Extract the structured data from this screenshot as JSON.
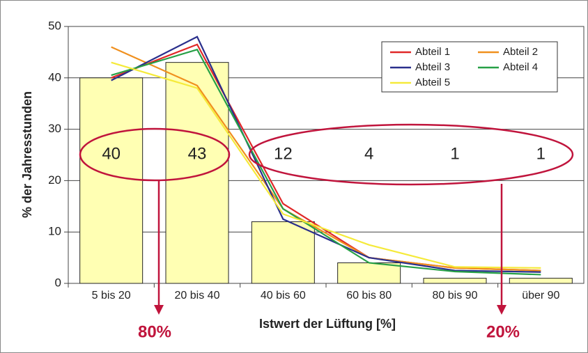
{
  "chart_data": {
    "type": "bar",
    "categories": [
      "5 bis 20",
      "20 bis 40",
      "40 bis 60",
      "60 bis 80",
      "80 bis 90",
      "über 90"
    ],
    "values": [
      40,
      43,
      12,
      4,
      1,
      1
    ],
    "color": "#ffffb3",
    "series": [
      {
        "name": "Abteil 1",
        "color": "#e02828",
        "values": [
          40,
          46.5,
          15.5,
          5,
          3,
          2.5
        ]
      },
      {
        "name": "Abteil 2",
        "color": "#f0901e",
        "values": [
          46,
          38.5,
          14.5,
          5,
          3,
          2.5
        ]
      },
      {
        "name": "Abteil 3",
        "color": "#2a2f8c",
        "values": [
          39.5,
          48,
          12.5,
          5,
          2.5,
          2.2
        ]
      },
      {
        "name": "Abteil 4",
        "color": "#27a046",
        "values": [
          40.5,
          45.5,
          14.5,
          4,
          2.3,
          1.7
        ]
      },
      {
        "name": "Abteil 5",
        "color": "#f5ea3a",
        "values": [
          43,
          38,
          13.5,
          7.5,
          3.2,
          3
        ]
      }
    ],
    "ylabel": "% der Jahresstunden",
    "xlabel": "Istwert der Lüftung [%]",
    "annotations": [
      "80%",
      "20%"
    ],
    "ylim": [
      0,
      50
    ],
    "yticks": [
      0,
      10,
      20,
      30,
      40,
      50
    ],
    "grid": true,
    "legend": "upper right"
  }
}
